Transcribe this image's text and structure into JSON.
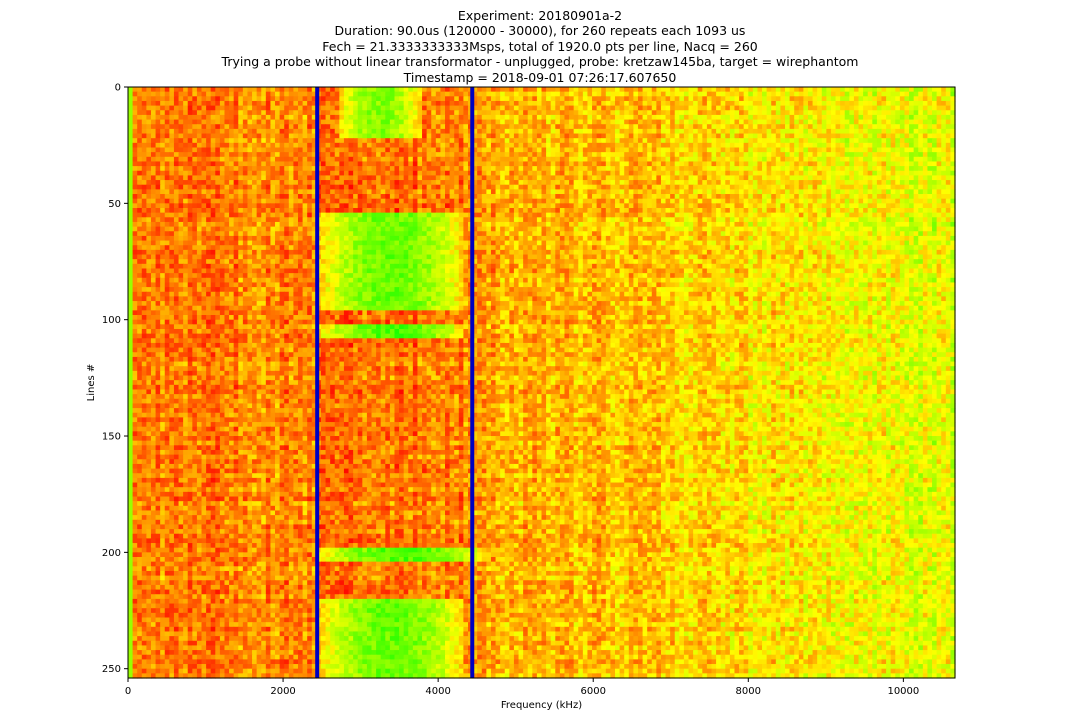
{
  "chart_data": {
    "type": "heatmap",
    "title_lines": [
      "Experiment: 20180901a-2",
      "Duration: 90.0us (120000 - 30000), for 260 repeats each 1093 us",
      "Fech = 21.3333333333Msps, total of 1920.0 pts per line, Nacq = 260",
      "Trying a probe without linear transformator - unplugged, probe: kretzaw145ba, target = wirephantom",
      "Timestamp = 2018-09-01 07:26:17.607650"
    ],
    "xlabel": "Frequency (kHz)",
    "ylabel": "Lines #",
    "xlim": [
      0,
      10666
    ],
    "ylim": [
      254,
      0
    ],
    "xticks": [
      0,
      2000,
      4000,
      6000,
      8000,
      10000
    ],
    "xtick_labels": [
      "0",
      "2000",
      "4000",
      "6000",
      "8000",
      "10000"
    ],
    "yticks": [
      0,
      50,
      100,
      150,
      200,
      250
    ],
    "ytick_labels": [
      "0",
      "50",
      "100",
      "150",
      "200",
      "250"
    ],
    "colormap": [
      "#ff0000",
      "#ff8000",
      "#ffff00",
      "#80ff00",
      "#00ff00"
    ],
    "marker_lines": {
      "x": [
        2440,
        4440
      ],
      "color": "#0000c0"
    },
    "bright_regions": [
      {
        "x_range": [
          2700,
          3800
        ],
        "y_range": [
          0,
          22
        ],
        "level": 0.75
      },
      {
        "x_range": [
          2450,
          4350
        ],
        "y_range": [
          55,
          95
        ],
        "level": 0.8
      },
      {
        "x_range": [
          2450,
          4350
        ],
        "y_range": [
          103,
          107
        ],
        "level": 0.85
      },
      {
        "x_range": [
          2450,
          4650
        ],
        "y_range": [
          198,
          204
        ],
        "level": 0.85
      },
      {
        "x_range": [
          2450,
          4350
        ],
        "y_range": [
          220,
          254
        ],
        "level": 0.8
      }
    ]
  }
}
